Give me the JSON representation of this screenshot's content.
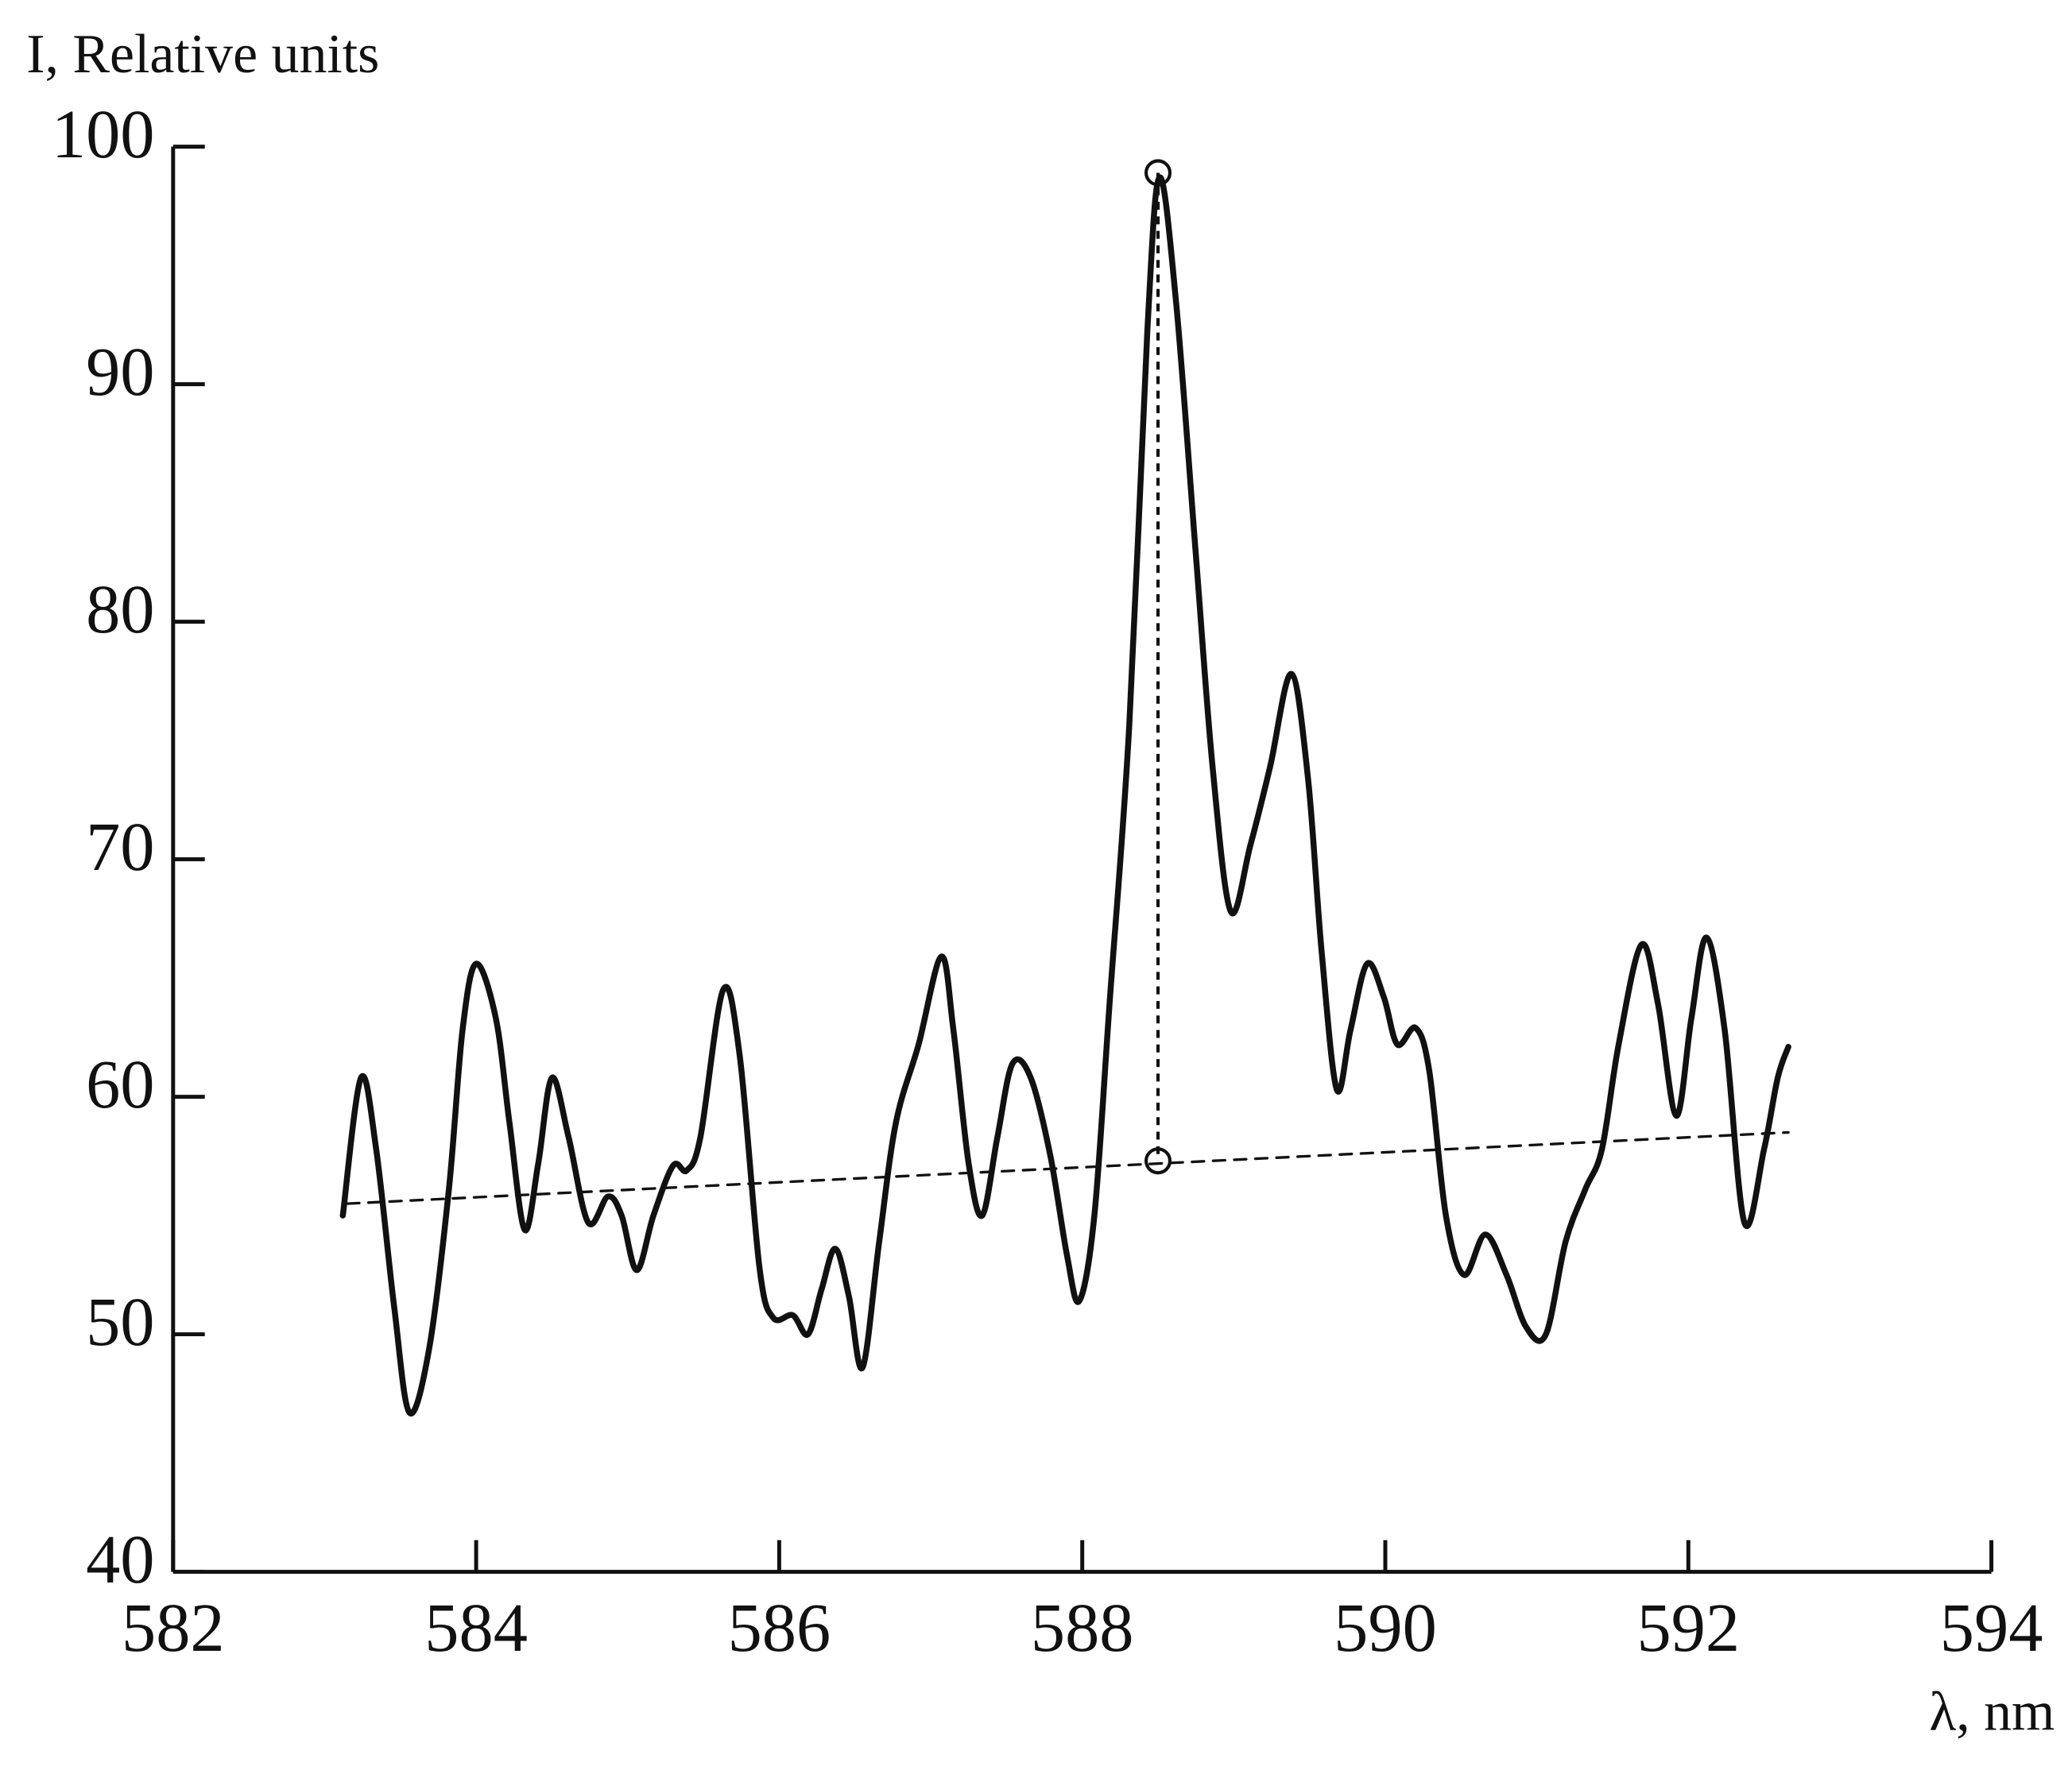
{
  "chart_data": {
    "type": "line",
    "y_label": "I, Relative units",
    "x_label": "λ, nm",
    "xlim": [
      582,
      594
    ],
    "xticks": [
      582,
      584,
      586,
      588,
      590,
      592,
      594
    ],
    "ylim": [
      40,
      100
    ],
    "yticks": [
      40,
      50,
      60,
      70,
      80,
      90,
      100
    ],
    "grid": false,
    "series": [
      {
        "color": "#111111",
        "style": "solid",
        "x": [
          583.12,
          583.24,
          583.34,
          583.46,
          583.56,
          583.69,
          583.82,
          583.91,
          584.0,
          584.13,
          584.22,
          584.32,
          584.41,
          584.5,
          584.61,
          584.74,
          584.87,
          584.96,
          585.06,
          585.17,
          585.3,
          585.39,
          585.48,
          585.63,
          585.74,
          585.87,
          585.96,
          586.09,
          586.19,
          586.28,
          586.37,
          586.46,
          586.55,
          586.66,
          586.77,
          586.92,
          587.07,
          587.15,
          587.25,
          587.34,
          587.44,
          587.54,
          587.66,
          587.79,
          587.9,
          587.98,
          588.08,
          588.18,
          588.31,
          588.43,
          588.51,
          588.62,
          588.75,
          588.86,
          588.98,
          589.11,
          589.24,
          589.38,
          589.49,
          589.58,
          589.68,
          589.77,
          589.88,
          589.99,
          590.08,
          590.2,
          590.29,
          590.4,
          590.52,
          590.66,
          590.8,
          590.93,
          591.06,
          591.19,
          591.32,
          591.43,
          591.54,
          591.69,
          591.8,
          591.92,
          592.02,
          592.12,
          592.24,
          592.37,
          592.5,
          592.59,
          592.66
        ],
        "values": [
          55.0,
          60.8,
          57.8,
          51.1,
          46.7,
          49.4,
          56.1,
          62.8,
          65.6,
          63.3,
          58.9,
          54.4,
          57.2,
          60.8,
          58.3,
          54.7,
          55.8,
          55.0,
          52.7,
          55.0,
          57.1,
          56.9,
          58.3,
          64.5,
          61.7,
          52.8,
          50.7,
          50.8,
          50.0,
          51.9,
          53.6,
          51.6,
          48.6,
          53.9,
          58.9,
          62.2,
          65.9,
          62.8,
          57.2,
          55.0,
          58.3,
          61.4,
          60.8,
          57.5,
          53.3,
          51.4,
          55.0,
          63.9,
          75.6,
          92.3,
          98.7,
          93.4,
          82.8,
          73.9,
          67.8,
          70.6,
          73.9,
          77.8,
          73.4,
          66.1,
          60.3,
          62.8,
          65.6,
          64.2,
          62.2,
          62.9,
          61.1,
          55.0,
          52.5,
          54.2,
          52.5,
          50.3,
          50.0,
          53.9,
          56.1,
          57.8,
          62.2,
          66.4,
          63.9,
          59.2,
          63.3,
          66.7,
          62.8,
          54.7,
          57.8,
          60.8,
          62.1
        ]
      },
      {
        "color": "#111111",
        "style": "dashed",
        "x": [
          583.15,
          592.66
        ],
        "values": [
          55.5,
          58.5
        ]
      }
    ],
    "peak": {
      "x": 588.5,
      "values": [
        98.9,
        57.3
      ]
    }
  }
}
